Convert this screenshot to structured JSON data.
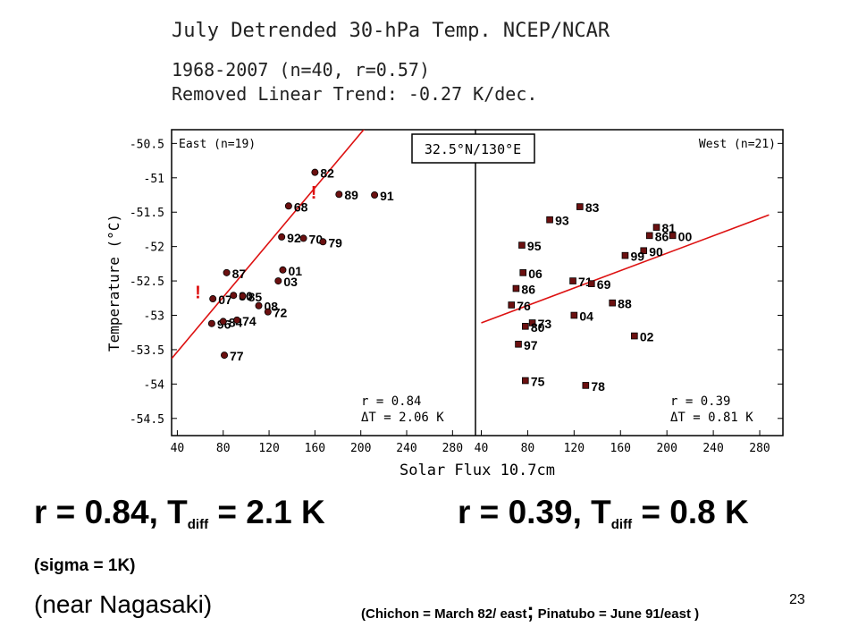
{
  "header": {
    "title": "July Detrended 30-hPa Temp. NCEP/NCAR",
    "line1": "1968-2007 (n=40, r=0.57)",
    "line2": "Removed Linear Trend: -0.27 K/dec."
  },
  "chart_data": {
    "type": "scatter",
    "xlabel": "Solar Flux 10.7cm",
    "ylabel": "Temperature (°C)",
    "location": "32.5°N/130°E",
    "ylim": [
      -54.75,
      -50.3
    ],
    "y_ticks": [
      "-50.5",
      "-51",
      "-51.5",
      "-52",
      "-52.5",
      "-53",
      "-53.5",
      "-54",
      "-54.5"
    ],
    "x_ticks": [
      "40",
      "80",
      "120",
      "160",
      "200",
      "240",
      "280"
    ],
    "panels": [
      {
        "name": "East (n=19)",
        "xlim": [
          35,
          300
        ],
        "stats": {
          "r": "r = 0.84",
          "dT": "ΔT = 2.06 K"
        },
        "fit": {
          "x": [
            35,
            205
          ],
          "y": [
            -53.63,
            -50.25
          ]
        },
        "points": [
          {
            "label": "82",
            "x": 160,
            "y": -50.92
          },
          {
            "label": "89",
            "x": 181,
            "y": -51.24
          },
          {
            "label": "91",
            "x": 212,
            "y": -51.25
          },
          {
            "label": "68",
            "x": 137,
            "y": -51.41
          },
          {
            "label": "92",
            "x": 131,
            "y": -51.86
          },
          {
            "label": "70",
            "x": 150,
            "y": -51.88
          },
          {
            "label": "79",
            "x": 167,
            "y": -51.93
          },
          {
            "label": "87",
            "x": 83,
            "y": -52.38
          },
          {
            "label": "01",
            "x": 132,
            "y": -52.34
          },
          {
            "label": "03",
            "x": 128,
            "y": -52.5
          },
          {
            "label": "07",
            "x": 71,
            "y": -52.76
          },
          {
            "label": "80",
            "x": 89,
            "y": -52.71
          },
          {
            "label": "85",
            "x": 97,
            "y": -52.72
          },
          {
            "label": "08",
            "x": 111,
            "y": -52.86
          },
          {
            "label": "72",
            "x": 119,
            "y": -52.95
          },
          {
            "label": "96",
            "x": 70,
            "y": -53.12
          },
          {
            "label": "84",
            "x": 80,
            "y": -53.09
          },
          {
            "label": "74",
            "x": 92,
            "y": -53.07
          },
          {
            "label": "77",
            "x": 81,
            "y": -53.58
          }
        ],
        "marks": [
          {
            "text": "!",
            "x": 159,
            "y": -51.3
          },
          {
            "text": "!",
            "x": 58,
            "y": -52.75
          }
        ]
      },
      {
        "name": "West (n=21)",
        "xlim": [
          35,
          300
        ],
        "stats": {
          "r": "r = 0.39",
          "dT": "ΔT = 0.81 K"
        },
        "fit": {
          "x": [
            40,
            288
          ],
          "y": [
            -53.11,
            -51.54
          ]
        },
        "points": [
          {
            "label": "83",
            "x": 125,
            "y": -51.42
          },
          {
            "label": "93",
            "x": 99,
            "y": -51.61
          },
          {
            "label": "81",
            "x": 191,
            "y": -51.72
          },
          {
            "label": "86",
            "x": 185,
            "y": -51.84
          },
          {
            "label": "00",
            "x": 205,
            "y": -51.84
          },
          {
            "label": "95",
            "x": 75,
            "y": -51.98
          },
          {
            "label": "90",
            "x": 180,
            "y": -52.06
          },
          {
            "label": "99",
            "x": 164,
            "y": -52.13
          },
          {
            "label": "06",
            "x": 76,
            "y": -52.38
          },
          {
            "label": "71",
            "x": 119,
            "y": -52.5
          },
          {
            "label": "69",
            "x": 135,
            "y": -52.54
          },
          {
            "label": "86",
            "x": 70,
            "y": -52.61
          },
          {
            "label": "76",
            "x": 66,
            "y": -52.85
          },
          {
            "label": "88",
            "x": 153,
            "y": -52.82
          },
          {
            "label": "04",
            "x": 120,
            "y": -53.0
          },
          {
            "label": "73",
            "x": 84,
            "y": -53.11
          },
          {
            "label": "80",
            "x": 78,
            "y": -53.16
          },
          {
            "label": "02",
            "x": 172,
            "y": -53.3
          },
          {
            "label": "97",
            "x": 72,
            "y": -53.42
          },
          {
            "label": "75",
            "x": 78,
            "y": -53.95
          },
          {
            "label": "78",
            "x": 130,
            "y": -54.02
          }
        ],
        "marks": []
      }
    ]
  },
  "summary": {
    "left_r": "r = 0.84, T",
    "left_sub": "diff",
    "left_val": " = 2.1 K",
    "right_r": "r = 0.39, T",
    "right_sub": "diff",
    "right_val": " = 0.8 K",
    "sigma": "(sigma = 1K)",
    "near": "(near Nagasaki)",
    "eruptions_a": "(Chichon = March 82/ east",
    "eruptions_semi": ";",
    "eruptions_b": " Pinatubo = June 91/east )",
    "page_number": "23"
  },
  "colors": {
    "fit_line": "#dd1111",
    "point_fill": "#6b1010",
    "axis": "#000000",
    "mark": "#dd1111"
  }
}
